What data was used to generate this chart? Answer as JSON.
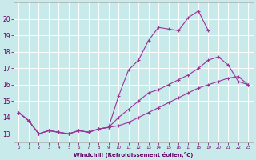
{
  "xlabel": "Windchill (Refroidissement éolien,°C)",
  "bg_color": "#c8eaea",
  "grid_color": "#ffffff",
  "line_color": "#993399",
  "xlim": [
    -0.5,
    23.5
  ],
  "ylim": [
    12.5,
    21.0
  ],
  "xticks": [
    0,
    1,
    2,
    3,
    4,
    5,
    6,
    7,
    8,
    9,
    10,
    11,
    12,
    13,
    14,
    15,
    16,
    17,
    18,
    19,
    20,
    21,
    22,
    23
  ],
  "yticks": [
    13,
    14,
    15,
    16,
    17,
    18,
    19,
    20
  ],
  "series": [
    {
      "x": [
        0,
        1,
        2,
        3,
        4,
        5,
        6,
        7,
        8,
        9,
        10,
        11,
        12,
        13,
        14,
        15,
        16,
        17,
        18,
        19
      ],
      "y": [
        14.3,
        13.8,
        13.0,
        13.2,
        13.1,
        13.0,
        13.2,
        13.1,
        13.3,
        13.4,
        15.3,
        16.9,
        17.5,
        18.7,
        19.5,
        19.4,
        19.3,
        20.1,
        20.5,
        19.3
      ]
    },
    {
      "x": [
        0,
        1,
        2,
        3,
        4,
        5,
        6,
        7,
        8,
        9,
        10,
        11,
        12,
        13,
        14,
        15,
        16,
        17,
        18,
        19,
        20,
        21,
        22,
        23
      ],
      "y": [
        14.3,
        13.8,
        13.0,
        13.2,
        13.1,
        13.0,
        13.2,
        13.1,
        13.3,
        13.4,
        14.0,
        14.5,
        15.0,
        15.5,
        15.7,
        16.0,
        16.3,
        16.6,
        17.0,
        17.5,
        17.7,
        17.2,
        16.2,
        16.0
      ]
    },
    {
      "x": [
        0,
        1,
        2,
        3,
        4,
        5,
        6,
        7,
        8,
        9,
        10,
        11,
        12,
        13,
        14,
        15,
        16,
        17,
        18,
        19,
        20,
        21,
        22,
        23
      ],
      "y": [
        14.3,
        13.8,
        13.0,
        13.2,
        13.1,
        13.0,
        13.2,
        13.1,
        13.3,
        13.4,
        13.5,
        13.7,
        14.0,
        14.3,
        14.6,
        14.9,
        15.2,
        15.5,
        15.8,
        16.0,
        16.2,
        16.4,
        16.5,
        16.0
      ]
    }
  ]
}
